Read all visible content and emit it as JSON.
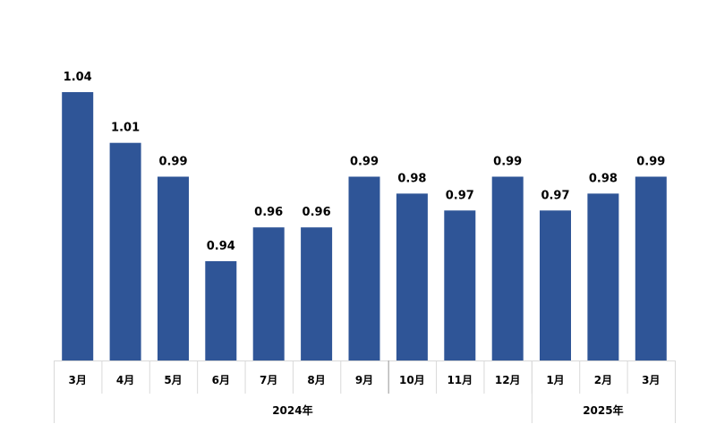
{
  "chart_data": {
    "type": "bar",
    "categories": [
      "3月",
      "4月",
      "5月",
      "6月",
      "7月",
      "8月",
      "9月",
      "10月",
      "11月",
      "12月",
      "1月",
      "2月",
      "3月"
    ],
    "values": [
      1.04,
      1.01,
      0.99,
      0.94,
      0.96,
      0.96,
      0.99,
      0.98,
      0.97,
      0.99,
      0.97,
      0.98,
      0.99
    ],
    "value_labels": [
      "1.04",
      "1.01",
      "0.99",
      "0.94",
      "0.96",
      "0.96",
      "0.99",
      "0.98",
      "0.97",
      "0.99",
      "0.97",
      "0.98",
      "0.99"
    ],
    "groups": [
      {
        "label": "2024年",
        "count": 10
      },
      {
        "label": "2025年",
        "count": 3
      }
    ],
    "ylim": [
      0.89,
      1.06
    ],
    "bar_color": "#2f5597",
    "grid": false,
    "legend": "none"
  }
}
